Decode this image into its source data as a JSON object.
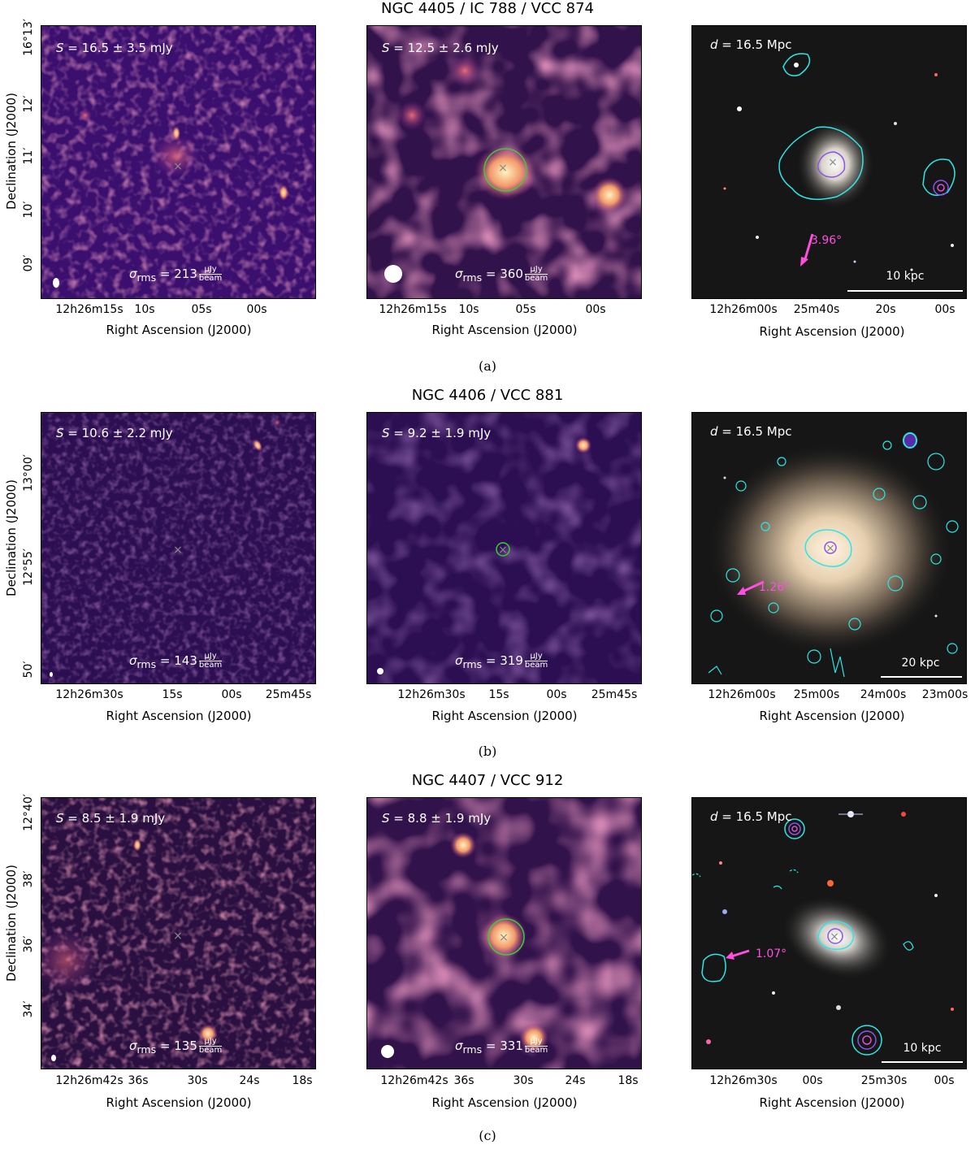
{
  "rows": [
    {
      "title": "NGC 4405 / IC 788 / VCC 874",
      "caption": "(a)",
      "panel1": {
        "flux": "16.5 ± 3.5 mJy",
        "rms": "213"
      },
      "panel2": {
        "flux": "12.5 ± 2.6 mJy",
        "rms": "360"
      },
      "panel3": {
        "distance": "16.5 Mpc",
        "scalebar": "10 kpc",
        "angle": "3.96°"
      },
      "yticks": [
        "16°13′",
        "12′",
        "11′",
        "10′",
        "09′"
      ],
      "xticks_radio": [
        "12h26m15s",
        "10s",
        "05s",
        "00s"
      ],
      "xticks_optical": [
        "12h26m00s",
        "25m40s",
        "20s",
        "00s"
      ]
    },
    {
      "title": "NGC 4406 / VCC 881",
      "caption": "(b)",
      "panel1": {
        "flux": "10.6 ± 2.2 mJy",
        "rms": "143"
      },
      "panel2": {
        "flux": "9.2 ± 1.9 mJy",
        "rms": "319"
      },
      "panel3": {
        "distance": "16.5 Mpc",
        "scalebar": "20 kpc",
        "angle": "1.26°"
      },
      "yticks": [
        "13°00′",
        "12°55′",
        "50′"
      ],
      "xticks_radio": [
        "12h26m30s",
        "15s",
        "00s",
        "25m45s"
      ],
      "xticks_optical": [
        "12h26m00s",
        "25m00s",
        "24m00s",
        "23m00s"
      ]
    },
    {
      "title": "NGC 4407 / VCC 912",
      "caption": "(c)",
      "panel1": {
        "flux": "8.5 ± 1.9 mJy",
        "rms": "135"
      },
      "panel2": {
        "flux": "8.8 ± 1.9 mJy",
        "rms": "331"
      },
      "panel3": {
        "distance": "16.5 Mpc",
        "scalebar": "10 kpc",
        "angle": "1.07°"
      },
      "yticks": [
        "12°40′",
        "38′",
        "36′",
        "34′"
      ],
      "xticks_radio": [
        "12h26m42s",
        "36s",
        "30s",
        "24s",
        "18s"
      ],
      "xticks_optical": [
        "12h26m30s",
        "00s",
        "25m30s",
        "00s"
      ]
    }
  ],
  "labels": {
    "xlabel": "Right Ascension (J2000)",
    "ylabel": "Declination (J2000)",
    "S_symbol": "S",
    "d_symbol": "d",
    "sigma_symbol": "σ",
    "sigma_sub": "rms",
    "unit_num": "μJy",
    "unit_den": "beam"
  },
  "colors": {
    "radio_bg": "#3a0f6e",
    "radio_bright": "#fde9a8",
    "contour_cyan": "#2ee6e6",
    "contour_violet": "#8a55e6",
    "beam_fill": "#ffffff",
    "marker_x": "#8a8a8a",
    "aperture": "#3ccc3c",
    "angle_arrow": "#ff4fe0"
  }
}
